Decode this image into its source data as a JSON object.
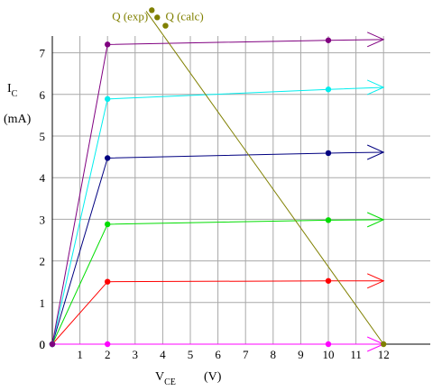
{
  "chart_data": {
    "type": "line",
    "title": "",
    "ylabel": {
      "main": "I",
      "sub": "C",
      "unit": "(mA)"
    },
    "xlabel": {
      "main": "V",
      "sub": "CE",
      "unit": "(V)"
    },
    "xlim": [
      0,
      13.0
    ],
    "ylim": [
      0,
      7.5
    ],
    "x_ticks": [
      1,
      2,
      3,
      4,
      5,
      6,
      7,
      8,
      9,
      10,
      11,
      12
    ],
    "y_ticks": [
      0,
      1,
      2,
      3,
      4,
      5,
      6,
      7
    ],
    "origin_label": "0",
    "grid": true,
    "series": [
      {
        "color": "#ff00ff",
        "points": [
          [
            0,
            0
          ],
          [
            2,
            0.0
          ],
          [
            10,
            0.0
          ],
          [
            12,
            0.0
          ]
        ]
      },
      {
        "color": "#ff0000",
        "points": [
          [
            0,
            0
          ],
          [
            2,
            1.5
          ],
          [
            10,
            1.52
          ],
          [
            12,
            1.52
          ]
        ]
      },
      {
        "color": "#00dd00",
        "points": [
          [
            0,
            0
          ],
          [
            2,
            2.88
          ],
          [
            10,
            2.98
          ],
          [
            12,
            2.99
          ]
        ]
      },
      {
        "color": "#000080",
        "points": [
          [
            0,
            0
          ],
          [
            2,
            4.47
          ],
          [
            10,
            4.59
          ],
          [
            12,
            4.61
          ]
        ]
      },
      {
        "color": "#00eeee",
        "points": [
          [
            0,
            0
          ],
          [
            2,
            5.89
          ],
          [
            10,
            6.12
          ],
          [
            12,
            6.17
          ]
        ]
      },
      {
        "color": "#800080",
        "points": [
          [
            0,
            0
          ],
          [
            2,
            7.2
          ],
          [
            10,
            7.3
          ],
          [
            12,
            7.32
          ]
        ]
      }
    ],
    "load_line": {
      "color": "#808000",
      "x0": 3.4,
      "y0": 8.0,
      "x1": 12,
      "y1": 0
    },
    "q_points": [
      {
        "label": "Q (exp)",
        "x": 3.8,
        "y": 7.85
      },
      {
        "label": "Q (calc)",
        "x": 4.1,
        "y": 7.65
      }
    ]
  }
}
